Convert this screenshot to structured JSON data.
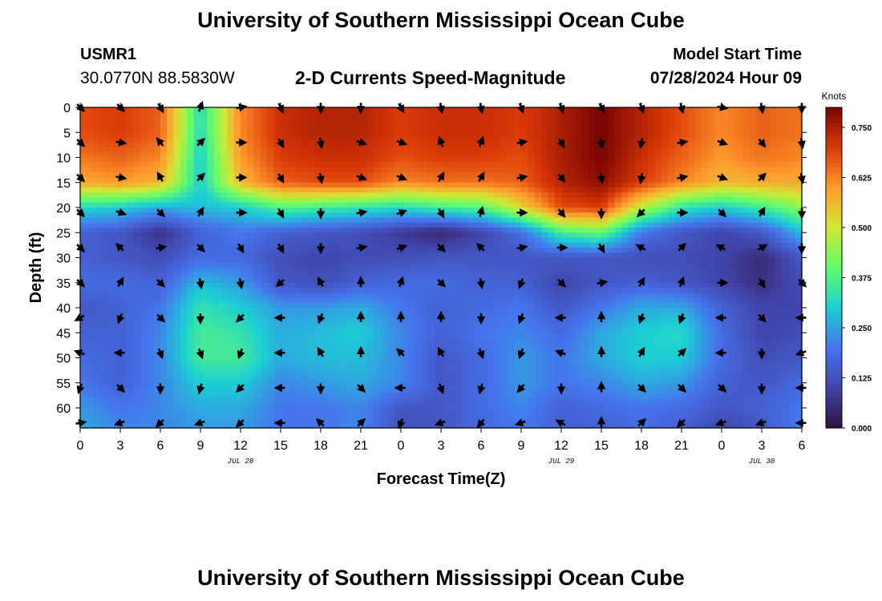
{
  "header": {
    "title": "University of Southern Mississippi Ocean Cube",
    "station": "USMR1",
    "coordinates": "30.0770N  88.5830W",
    "chart_title": "2-D Currents Speed-Magnitude",
    "model_label": "Model Start Time",
    "model_start": "07/28/2024 Hour 09"
  },
  "footer": {
    "title": "University of Southern Mississippi Ocean Cube"
  },
  "chart_data": {
    "type": "heatmap",
    "title": "2-D Currents Speed-Magnitude",
    "xlabel": "Forecast Time(Z)",
    "ylabel": "Depth (ft)",
    "x_tick_labels": [
      "0",
      "3",
      "6",
      "9",
      "12",
      "15",
      "18",
      "21",
      "0",
      "3",
      "6",
      "9",
      "12",
      "15",
      "18",
      "21",
      "0",
      "3",
      "6"
    ],
    "date_labels": [
      {
        "label": "JUL 28",
        "x_hours": 12
      },
      {
        "label": "JUL 29",
        "x_hours": 36
      },
      {
        "label": "JUL 30",
        "x_hours": 51
      }
    ],
    "xlim_hours": [
      0,
      54
    ],
    "y_ticks": [
      0,
      5,
      10,
      15,
      20,
      25,
      30,
      35,
      40,
      45,
      50,
      55,
      60
    ],
    "ylim": [
      0,
      64
    ],
    "y_inverted": true,
    "colorbar": {
      "label": "Knots",
      "ticks": [
        "0.000",
        "0.125",
        "0.250",
        "0.375",
        "0.500",
        "0.625",
        "0.750"
      ],
      "range": [
        0,
        0.8
      ],
      "palette": [
        "#30123b",
        "#4145ab",
        "#4675ed",
        "#1bcfd4",
        "#61fc6c",
        "#d1e834",
        "#fe9b2d",
        "#db3a07",
        "#7a0403"
      ]
    },
    "speed_grid_hours": [
      0,
      3,
      6,
      9,
      12,
      15,
      18,
      21,
      24,
      27,
      30,
      33,
      36,
      39,
      42,
      45,
      48,
      51,
      54
    ],
    "speed_grid_depths": [
      0,
      5,
      10,
      15,
      20,
      25,
      30,
      35,
      40,
      45,
      50,
      55,
      60,
      64
    ],
    "speed_knots": [
      [
        0.68,
        0.7,
        0.66,
        0.32,
        0.62,
        0.72,
        0.74,
        0.74,
        0.7,
        0.72,
        0.72,
        0.7,
        0.75,
        0.8,
        0.74,
        0.68,
        0.62,
        0.66,
        0.64
      ],
      [
        0.68,
        0.7,
        0.66,
        0.32,
        0.62,
        0.72,
        0.74,
        0.74,
        0.7,
        0.72,
        0.72,
        0.7,
        0.75,
        0.8,
        0.74,
        0.68,
        0.62,
        0.66,
        0.64
      ],
      [
        0.64,
        0.66,
        0.62,
        0.3,
        0.6,
        0.7,
        0.72,
        0.72,
        0.68,
        0.7,
        0.7,
        0.68,
        0.75,
        0.8,
        0.72,
        0.66,
        0.6,
        0.64,
        0.62
      ],
      [
        0.58,
        0.6,
        0.56,
        0.3,
        0.56,
        0.66,
        0.68,
        0.68,
        0.62,
        0.64,
        0.64,
        0.66,
        0.74,
        0.78,
        0.7,
        0.62,
        0.56,
        0.58,
        0.58
      ],
      [
        0.32,
        0.3,
        0.26,
        0.28,
        0.3,
        0.38,
        0.36,
        0.34,
        0.32,
        0.36,
        0.38,
        0.52,
        0.68,
        0.7,
        0.48,
        0.34,
        0.3,
        0.36,
        0.44
      ],
      [
        0.16,
        0.14,
        0.06,
        0.16,
        0.2,
        0.16,
        0.14,
        0.12,
        0.08,
        0.04,
        0.1,
        0.18,
        0.36,
        0.4,
        0.2,
        0.14,
        0.1,
        0.14,
        0.28
      ],
      [
        0.16,
        0.14,
        0.12,
        0.18,
        0.18,
        0.12,
        0.1,
        0.12,
        0.12,
        0.14,
        0.14,
        0.14,
        0.14,
        0.14,
        0.12,
        0.12,
        0.1,
        0.05,
        0.14
      ],
      [
        0.18,
        0.18,
        0.16,
        0.28,
        0.24,
        0.14,
        0.12,
        0.16,
        0.18,
        0.18,
        0.16,
        0.16,
        0.1,
        0.14,
        0.16,
        0.14,
        0.1,
        0.06,
        0.12
      ],
      [
        0.14,
        0.16,
        0.2,
        0.34,
        0.3,
        0.24,
        0.24,
        0.26,
        0.2,
        0.16,
        0.18,
        0.2,
        0.14,
        0.2,
        0.26,
        0.26,
        0.16,
        0.1,
        0.1
      ],
      [
        0.16,
        0.16,
        0.22,
        0.36,
        0.34,
        0.26,
        0.28,
        0.3,
        0.22,
        0.16,
        0.2,
        0.22,
        0.18,
        0.26,
        0.3,
        0.32,
        0.18,
        0.1,
        0.12
      ],
      [
        0.18,
        0.16,
        0.22,
        0.36,
        0.36,
        0.26,
        0.28,
        0.28,
        0.22,
        0.14,
        0.18,
        0.24,
        0.2,
        0.26,
        0.3,
        0.3,
        0.18,
        0.12,
        0.14
      ],
      [
        0.2,
        0.16,
        0.22,
        0.3,
        0.3,
        0.22,
        0.24,
        0.26,
        0.22,
        0.14,
        0.18,
        0.24,
        0.2,
        0.22,
        0.26,
        0.24,
        0.16,
        0.14,
        0.18
      ],
      [
        0.24,
        0.2,
        0.22,
        0.26,
        0.26,
        0.2,
        0.2,
        0.22,
        0.14,
        0.14,
        0.18,
        0.22,
        0.16,
        0.18,
        0.2,
        0.18,
        0.14,
        0.16,
        0.2
      ],
      [
        0.26,
        0.22,
        0.22,
        0.24,
        0.24,
        0.2,
        0.2,
        0.22,
        0.12,
        0.14,
        0.18,
        0.2,
        0.16,
        0.16,
        0.18,
        0.16,
        0.1,
        0.14,
        0.22
      ]
    ],
    "vectors": {
      "x_hours": [
        0,
        3,
        6,
        9,
        12,
        15,
        18,
        21,
        24,
        27,
        30,
        33,
        36,
        39,
        42,
        45,
        48,
        51,
        54
      ],
      "depths_ft": [
        0,
        7,
        14,
        21,
        28,
        35,
        42,
        49,
        56,
        63
      ],
      "directions_deg": [
        [
          135,
          135,
          150,
          20,
          80,
          155,
          180,
          180,
          150,
          170,
          170,
          160,
          160,
          155,
          160,
          165,
          100,
          170,
          180
        ],
        [
          135,
          100,
          320,
          45,
          90,
          150,
          170,
          110,
          110,
          340,
          20,
          80,
          150,
          170,
          190,
          80,
          110,
          140,
          170
        ],
        [
          135,
          100,
          330,
          45,
          90,
          150,
          170,
          110,
          110,
          30,
          30,
          80,
          140,
          170,
          190,
          80,
          110,
          45,
          170
        ],
        [
          135,
          110,
          135,
          30,
          90,
          150,
          180,
          80,
          70,
          150,
          15,
          90,
          140,
          180,
          225,
          90,
          135,
          30,
          180
        ],
        [
          135,
          315,
          80,
          135,
          150,
          150,
          180,
          80,
          70,
          135,
          315,
          80,
          90,
          150,
          300,
          45,
          300,
          60,
          180
        ],
        [
          135,
          30,
          135,
          170,
          170,
          230,
          330,
          0,
          20,
          135,
          170,
          200,
          135,
          80,
          30,
          20,
          90,
          150,
          135
        ],
        [
          240,
          200,
          135,
          180,
          225,
          270,
          200,
          0,
          0,
          0,
          180,
          200,
          270,
          0,
          200,
          200,
          270,
          135,
          270
        ],
        [
          290,
          270,
          160,
          160,
          200,
          270,
          330,
          0,
          315,
          330,
          160,
          200,
          290,
          0,
          30,
          45,
          270,
          180,
          250
        ],
        [
          200,
          135,
          180,
          195,
          225,
          270,
          180,
          135,
          270,
          160,
          195,
          220,
          180,
          0,
          135,
          135,
          135,
          180,
          270
        ],
        [
          80,
          250,
          225,
          250,
          225,
          270,
          315,
          45,
          200,
          250,
          220,
          250,
          300,
          0,
          45,
          225,
          250,
          250,
          270
        ]
      ]
    }
  }
}
